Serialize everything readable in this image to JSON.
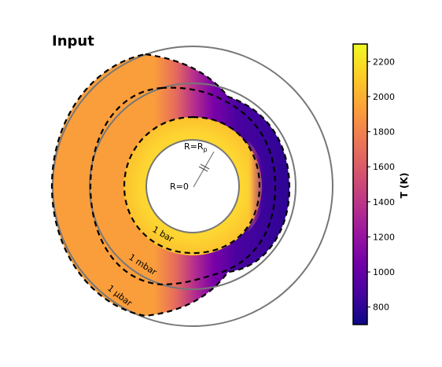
{
  "title": "Input",
  "annotations": {
    "surface_label": "R=R",
    "surface_sub": "p",
    "center_label": "R=0",
    "pressure_labels": [
      "1 bar",
      "1 mbar",
      "1 μbar"
    ]
  },
  "colorbar": {
    "label": "T (K)",
    "range": [
      700,
      2300
    ],
    "ticks": [
      "2200",
      "2000",
      "1800",
      "1600",
      "1400",
      "1200",
      "1000",
      "800"
    ],
    "colormap": [
      "#0d0887",
      "#46039f",
      "#7201a8",
      "#9c179e",
      "#bd3786",
      "#d8576b",
      "#ed7953",
      "#fb9f3a",
      "#fdca26",
      "#f0f921"
    ]
  },
  "colors": {
    "dayside": "#fa9e3b",
    "hot_ring": "#fde036",
    "nightside": "#3e049c",
    "reference_circle": "#777777",
    "isobar": "#000000"
  }
}
